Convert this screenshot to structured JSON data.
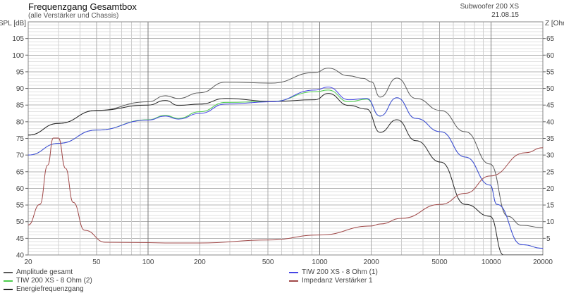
{
  "header": {
    "title": "Frequenzgang Gesamtbox",
    "subtitle": "(alle Verstärker und Chassis)",
    "model": "Subwoofer 200 XS",
    "date": "21.08.15"
  },
  "chart_data": {
    "type": "line",
    "title": "Frequenzgang Gesamtbox",
    "subtitle": "(alle Verstärker und Chassis)",
    "ylabel": "SPL [dB]",
    "y2label": "Z [Ohm]",
    "xscale": "log",
    "xlim": [
      20,
      20000
    ],
    "ylim": [
      40,
      110
    ],
    "y2lim": [
      0,
      70
    ],
    "grid": true,
    "legend": "bottom",
    "xticks": [
      20,
      50,
      100,
      200,
      500,
      1000,
      2000,
      5000,
      10000,
      20000
    ],
    "yticks": [
      40,
      45,
      50,
      55,
      60,
      65,
      70,
      75,
      80,
      85,
      90,
      95,
      100,
      105
    ],
    "y2ticks": [
      5,
      10,
      15,
      20,
      25,
      30,
      35,
      40,
      45,
      50,
      55,
      60,
      65
    ],
    "series": [
      {
        "name": "Amplitude gesamt",
        "color": "#5a5a5a",
        "axis": "left",
        "x": [
          20,
          30,
          50,
          100,
          126,
          150,
          200,
          283,
          524,
          940,
          1120,
          1480,
          1800,
          2000,
          2250,
          2820,
          3640,
          5070,
          7060,
          9840,
          12470,
          15060,
          20000
        ],
        "y": [
          76,
          79.5,
          83.4,
          86,
          87.8,
          87,
          88.7,
          91.9,
          91.6,
          94.8,
          96.1,
          93.8,
          93,
          92,
          87.4,
          93.1,
          87,
          83.4,
          77,
          67.3,
          51.6,
          48.9,
          48.2
        ]
      },
      {
        "name": "TIW 200 XS - 8 Ohm (2)",
        "color": "#4ccc4c",
        "axis": "left",
        "x": [
          20,
          30,
          50,
          100,
          126,
          150,
          200,
          283,
          524,
          940,
          1120,
          1480,
          1880,
          2250,
          2820,
          3640,
          5070,
          7060,
          9840,
          10800,
          15060,
          20000
        ],
        "y": [
          70,
          73.5,
          77.5,
          80.6,
          81.9,
          81,
          83,
          85.8,
          86.1,
          89,
          89.5,
          86,
          86.8,
          81.7,
          87.2,
          81,
          77,
          69.4,
          61,
          55.2,
          43.1,
          42
        ]
      },
      {
        "name": "Energiefrequenzgang",
        "color": "#262626",
        "axis": "left",
        "x": [
          20,
          30,
          50,
          100,
          126,
          150,
          200,
          283,
          524,
          940,
          1120,
          1480,
          1880,
          2250,
          2820,
          3640,
          5070,
          7060,
          9840,
          11800,
          20000
        ],
        "y": [
          76,
          79.5,
          83.4,
          85,
          86.4,
          84.9,
          85.3,
          87,
          86.1,
          86.6,
          88.5,
          84.9,
          83.8,
          76.8,
          80.6,
          74.3,
          67.9,
          55.2,
          51.6,
          40,
          38
        ]
      },
      {
        "name": "TIW 200 XS - 8 Ohm (1)",
        "color": "#4646e6",
        "axis": "left",
        "x": [
          20,
          30,
          50,
          100,
          126,
          150,
          200,
          283,
          524,
          940,
          1120,
          1480,
          1880,
          2250,
          2820,
          3640,
          5070,
          7060,
          9840,
          10800,
          15060,
          20000
        ],
        "y": [
          70,
          73.5,
          77.5,
          80.5,
          81.7,
          80.8,
          82.5,
          85.3,
          86,
          89.5,
          90.4,
          86.6,
          87,
          81.7,
          87.2,
          81,
          77,
          69.4,
          61,
          55.2,
          43.1,
          42
        ]
      },
      {
        "name": "Impedanz Verstärker 1",
        "color": "#a04848",
        "axis": "right",
        "x": [
          20,
          23.4,
          26,
          28,
          30,
          33,
          36.6,
          42.7,
          56.5,
          100,
          126,
          200,
          500,
          1000,
          2000,
          2250,
          3000,
          5070,
          7060,
          9840,
          15800,
          20000
        ],
        "y": [
          9,
          15.2,
          27,
          35.1,
          35.1,
          26,
          15.8,
          7.4,
          3.8,
          3.7,
          3.6,
          3.6,
          4.5,
          6,
          8.7,
          9.3,
          11,
          15.2,
          18.5,
          23.7,
          30.7,
          32.2
        ]
      }
    ]
  }
}
